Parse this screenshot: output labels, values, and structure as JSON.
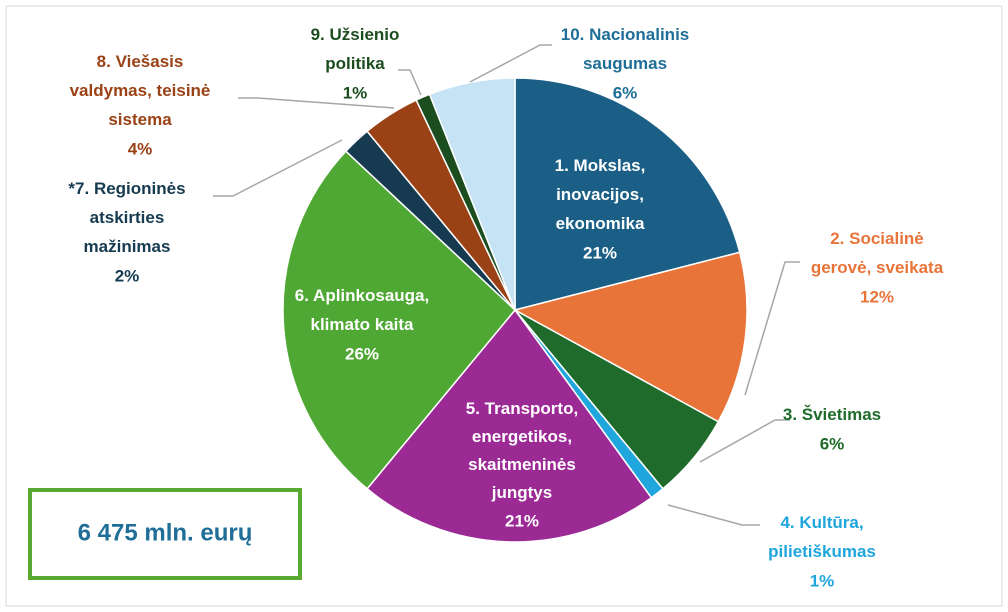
{
  "chart_data": {
    "type": "pie",
    "categories": [
      "1. Mokslas,\ninovacijos,\nekonomika",
      "2. Socialinė\ngerovė, sveikata",
      "3. Švietimas",
      "4. Kultūra,\npilietiškumas",
      "5. Transporto,\nenergetikos,\nskaitmeninės\njungtys",
      "6. Aplinkosauga,\nklimato kaita",
      "*7. Regioninės\natskirties\nmažinimas",
      "8. Viešasis\nvaldymas, teisinė\nsistema",
      "9. Užsienio\npolitika",
      "10. Nacionalinis\nsaugumas"
    ],
    "values": [
      21,
      12,
      6,
      1,
      21,
      26,
      2,
      4,
      1,
      6
    ],
    "value_labels": [
      "21%",
      "12%",
      "6%",
      "1%",
      "21%",
      "26%",
      "2%",
      "4%",
      "1%",
      "6%"
    ],
    "colors": [
      "#1b5e86",
      "#e8743a",
      "#1f6b2b",
      "#1ea6dd",
      "#9c2a95",
      "#4fa834",
      "#163a4f",
      "#9a4216",
      "#1c4d1f",
      "#c5e3f5"
    ],
    "annotation": "6 475 mln. eurų"
  }
}
